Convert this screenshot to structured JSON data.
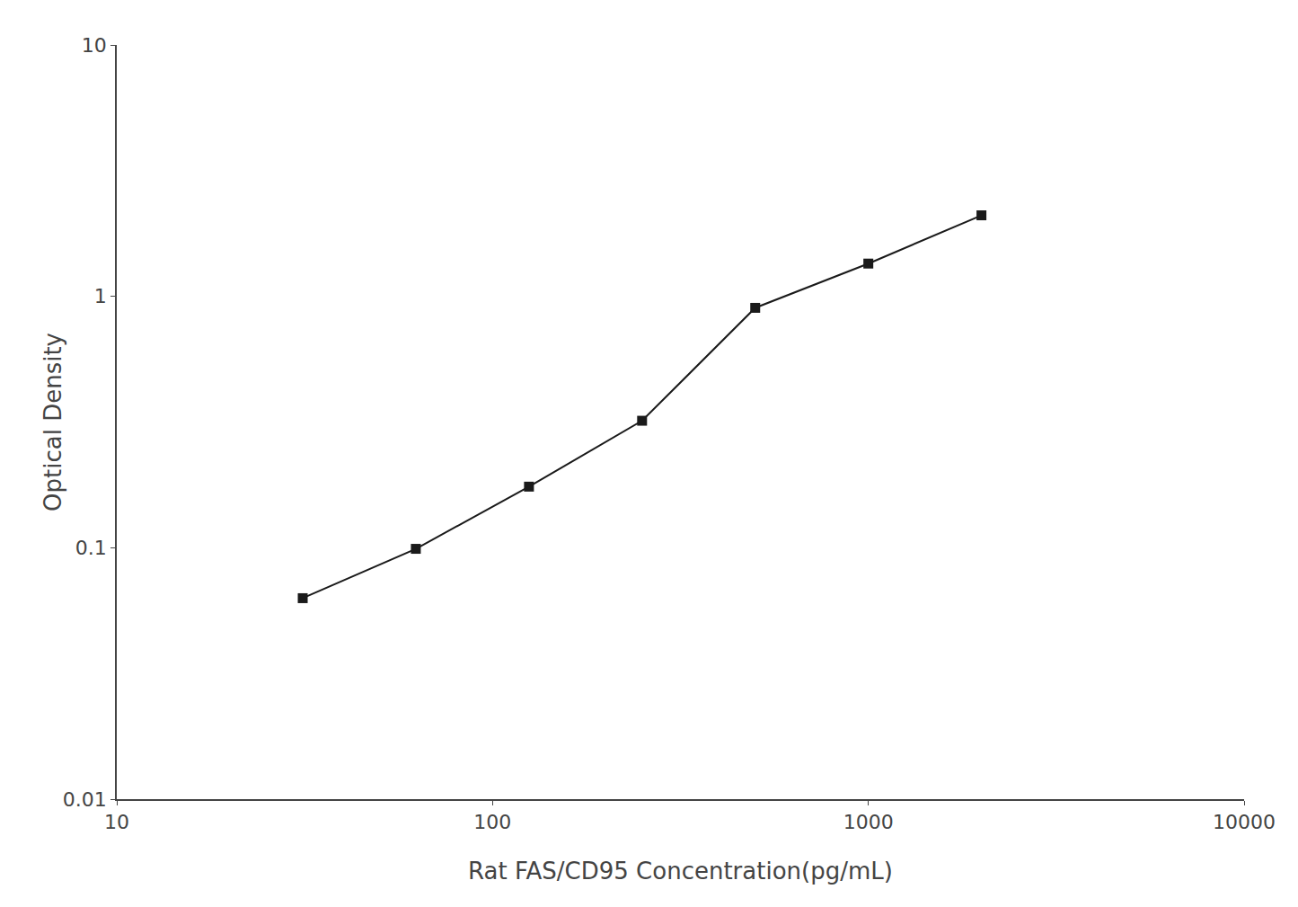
{
  "chart_data": {
    "type": "line",
    "x": [
      31.25,
      62.5,
      125,
      250,
      500,
      1000,
      2000
    ],
    "values": [
      0.063,
      0.099,
      0.175,
      0.32,
      0.9,
      1.35,
      2.1
    ],
    "xlabel": "Rat FAS/CD95 Concentration(pg/mL)",
    "ylabel": "Optical Density",
    "xlim": [
      10,
      10000
    ],
    "ylim": [
      0.01,
      10
    ],
    "xticks": [
      10,
      100,
      1000,
      10000
    ],
    "yticks": [
      0.01,
      0.1,
      1,
      10
    ],
    "log": true,
    "grid": false,
    "color": "#1a1a1a",
    "marker": "square",
    "line_style": "solid"
  }
}
